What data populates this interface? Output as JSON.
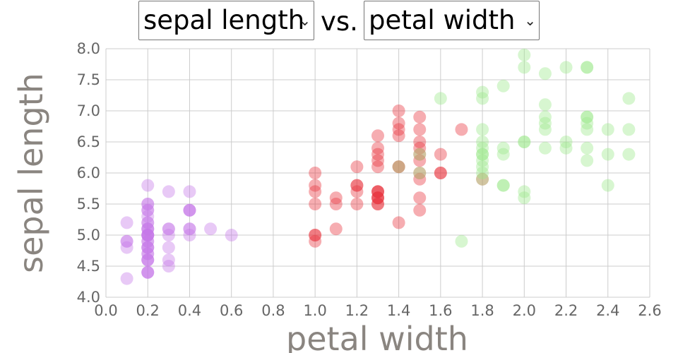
{
  "controls": {
    "x_select_value": "sepal length",
    "vs_label": "vs.",
    "y_select_value": "petal width",
    "chevron": "⌄"
  },
  "colors": {
    "setosa": "#c678e8",
    "versicolor": "#e8323c",
    "virginica": "#9be88a",
    "grid": "#cccccc",
    "axis_title": "#8a8580",
    "tick_label": "#666666"
  },
  "chart_data": {
    "type": "scatter",
    "title": "",
    "xlabel": "petal width",
    "ylabel": "sepal length",
    "xlim": [
      0.0,
      2.6
    ],
    "ylim": [
      4.0,
      8.0
    ],
    "x_ticks": [
      "0.0",
      "0.2",
      "0.4",
      "0.6",
      "0.8",
      "1.0",
      "1.2",
      "1.4",
      "1.6",
      "1.8",
      "2.0",
      "2.2",
      "2.4",
      "2.6"
    ],
    "y_ticks": [
      "4.0",
      "4.5",
      "5.0",
      "5.5",
      "6.0",
      "6.5",
      "7.0",
      "7.5",
      "8.0"
    ],
    "grid": true,
    "series": [
      {
        "color_key": "setosa",
        "points": [
          [
            0.2,
            5.1
          ],
          [
            0.2,
            4.9
          ],
          [
            0.2,
            4.7
          ],
          [
            0.2,
            4.6
          ],
          [
            0.2,
            5.0
          ],
          [
            0.4,
            5.4
          ],
          [
            0.3,
            4.6
          ],
          [
            0.2,
            5.0
          ],
          [
            0.2,
            4.4
          ],
          [
            0.1,
            4.9
          ],
          [
            0.2,
            5.4
          ],
          [
            0.2,
            4.8
          ],
          [
            0.1,
            4.8
          ],
          [
            0.1,
            4.3
          ],
          [
            0.2,
            5.8
          ],
          [
            0.4,
            5.7
          ],
          [
            0.4,
            5.4
          ],
          [
            0.3,
            5.1
          ],
          [
            0.3,
            5.7
          ],
          [
            0.3,
            5.1
          ],
          [
            0.2,
            5.4
          ],
          [
            0.4,
            5.1
          ],
          [
            0.2,
            4.6
          ],
          [
            0.5,
            5.1
          ],
          [
            0.2,
            4.8
          ],
          [
            0.2,
            5.0
          ],
          [
            0.4,
            5.0
          ],
          [
            0.2,
            5.2
          ],
          [
            0.2,
            5.2
          ],
          [
            0.2,
            4.7
          ],
          [
            0.2,
            4.8
          ],
          [
            0.4,
            5.4
          ],
          [
            0.1,
            5.2
          ],
          [
            0.2,
            5.5
          ],
          [
            0.2,
            4.9
          ],
          [
            0.2,
            5.0
          ],
          [
            0.2,
            5.5
          ],
          [
            0.1,
            4.9
          ],
          [
            0.2,
            4.4
          ],
          [
            0.2,
            5.1
          ],
          [
            0.3,
            5.0
          ],
          [
            0.3,
            4.5
          ],
          [
            0.2,
            4.4
          ],
          [
            0.6,
            5.0
          ],
          [
            0.4,
            5.1
          ],
          [
            0.3,
            4.8
          ],
          [
            0.2,
            5.1
          ],
          [
            0.2,
            4.6
          ],
          [
            0.2,
            5.3
          ],
          [
            0.2,
            5.0
          ]
        ]
      },
      {
        "color_key": "versicolor",
        "points": [
          [
            1.4,
            7.0
          ],
          [
            1.5,
            6.4
          ],
          [
            1.5,
            6.9
          ],
          [
            1.3,
            5.5
          ],
          [
            1.5,
            6.5
          ],
          [
            1.3,
            5.7
          ],
          [
            1.6,
            6.3
          ],
          [
            1.0,
            4.9
          ],
          [
            1.3,
            6.6
          ],
          [
            1.4,
            5.2
          ],
          [
            1.0,
            5.0
          ],
          [
            1.5,
            5.9
          ],
          [
            1.0,
            6.0
          ],
          [
            1.4,
            6.1
          ],
          [
            1.3,
            5.6
          ],
          [
            1.4,
            6.7
          ],
          [
            1.5,
            5.6
          ],
          [
            1.0,
            5.8
          ],
          [
            1.5,
            6.2
          ],
          [
            1.1,
            5.6
          ],
          [
            1.8,
            5.9
          ],
          [
            1.3,
            6.1
          ],
          [
            1.5,
            6.3
          ],
          [
            1.2,
            6.1
          ],
          [
            1.3,
            6.4
          ],
          [
            1.4,
            6.6
          ],
          [
            1.4,
            6.8
          ],
          [
            1.7,
            6.7
          ],
          [
            1.5,
            6.0
          ],
          [
            1.0,
            5.7
          ],
          [
            1.1,
            5.5
          ],
          [
            1.0,
            5.5
          ],
          [
            1.2,
            5.8
          ],
          [
            1.6,
            6.0
          ],
          [
            1.5,
            5.4
          ],
          [
            1.6,
            6.0
          ],
          [
            1.5,
            6.7
          ],
          [
            1.3,
            6.3
          ],
          [
            1.3,
            5.6
          ],
          [
            1.3,
            5.5
          ],
          [
            1.2,
            5.5
          ],
          [
            1.4,
            6.1
          ],
          [
            1.2,
            5.8
          ],
          [
            1.0,
            5.0
          ],
          [
            1.3,
            5.6
          ],
          [
            1.2,
            5.7
          ],
          [
            1.3,
            5.7
          ],
          [
            1.3,
            6.2
          ],
          [
            1.1,
            5.1
          ],
          [
            1.3,
            5.7
          ]
        ]
      },
      {
        "color_key": "virginica",
        "points": [
          [
            2.5,
            6.3
          ],
          [
            1.9,
            5.8
          ],
          [
            2.1,
            7.1
          ],
          [
            1.8,
            6.3
          ],
          [
            2.2,
            6.5
          ],
          [
            2.1,
            7.6
          ],
          [
            1.7,
            4.9
          ],
          [
            1.8,
            7.3
          ],
          [
            1.8,
            6.7
          ],
          [
            2.5,
            7.2
          ],
          [
            2.0,
            6.5
          ],
          [
            1.9,
            6.4
          ],
          [
            2.1,
            6.8
          ],
          [
            2.0,
            5.7
          ],
          [
            2.4,
            5.8
          ],
          [
            2.3,
            6.4
          ],
          [
            1.8,
            6.5
          ],
          [
            2.2,
            7.7
          ],
          [
            2.3,
            7.7
          ],
          [
            1.5,
            6.0
          ],
          [
            2.3,
            6.9
          ],
          [
            2.0,
            5.6
          ],
          [
            2.0,
            7.7
          ],
          [
            1.8,
            6.3
          ],
          [
            2.1,
            6.7
          ],
          [
            1.8,
            7.2
          ],
          [
            1.8,
            6.2
          ],
          [
            1.8,
            6.1
          ],
          [
            2.1,
            6.4
          ],
          [
            1.6,
            7.2
          ],
          [
            1.9,
            7.4
          ],
          [
            2.0,
            7.9
          ],
          [
            2.2,
            6.4
          ],
          [
            1.5,
            6.3
          ],
          [
            1.4,
            6.1
          ],
          [
            2.3,
            7.7
          ],
          [
            2.4,
            6.3
          ],
          [
            1.8,
            6.4
          ],
          [
            1.8,
            6.0
          ],
          [
            2.1,
            6.9
          ],
          [
            2.4,
            6.7
          ],
          [
            2.3,
            6.9
          ],
          [
            1.9,
            5.8
          ],
          [
            2.3,
            6.8
          ],
          [
            2.5,
            6.7
          ],
          [
            2.3,
            6.7
          ],
          [
            1.9,
            6.3
          ],
          [
            2.0,
            6.5
          ],
          [
            2.3,
            6.2
          ],
          [
            1.8,
            5.9
          ]
        ]
      }
    ]
  }
}
